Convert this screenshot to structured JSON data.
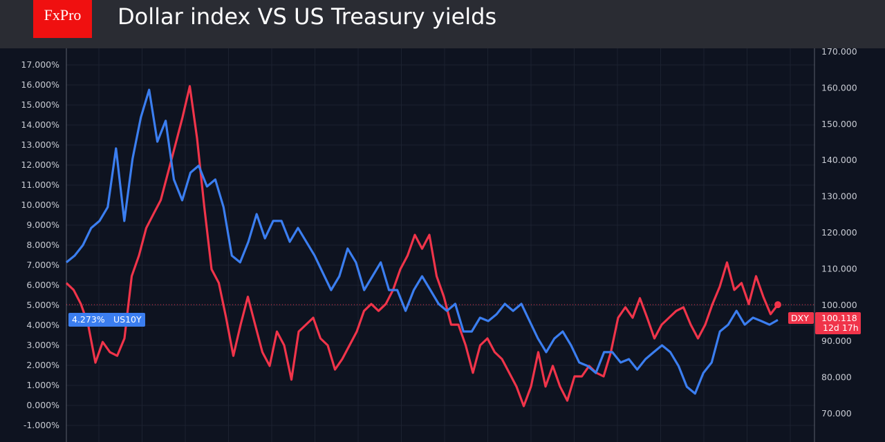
{
  "header": {
    "logo": "FxPro",
    "title": "Dollar index VS US Treasury yields"
  },
  "colors": {
    "us10y": "#3b7ef0",
    "dxy": "#f0344a",
    "background": "#0e1320",
    "header": "#2a2c33",
    "logo": "#f01010"
  },
  "chart_data": {
    "type": "line",
    "title": "Dollar index VS US Treasury yields",
    "grid": true,
    "y_left": {
      "ticks": [
        "17.000%",
        "16.000%",
        "15.000%",
        "14.000%",
        "13.000%",
        "12.000%",
        "11.000%",
        "10.000%",
        "9.000%",
        "8.000%",
        "7.000%",
        "6.000%",
        "5.000%",
        "4.000%",
        "3.000%",
        "2.000%",
        "1.000%",
        "0.000%",
        "-1.000%"
      ],
      "range": [
        -1.5,
        17.5
      ]
    },
    "y_right": {
      "ticks": [
        "170.000",
        "160.000",
        "150.000",
        "140.000",
        "130.000",
        "120.000",
        "110.000",
        "100.000",
        "90.000",
        "80.000",
        "70.000"
      ],
      "range": [
        69,
        171
      ]
    },
    "series": [
      {
        "name": "US10Y",
        "axis": "left",
        "last_label": "4.273%",
        "color": "#3b7ef0",
        "values": [
          7.14,
          7.48,
          8.0,
          8.86,
          9.21,
          9.9,
          12.83,
          9.21,
          12.31,
          14.38,
          15.76,
          13.17,
          14.21,
          11.28,
          10.24,
          11.62,
          11.97,
          10.93,
          11.28,
          9.9,
          7.48,
          7.14,
          8.17,
          9.55,
          8.34,
          9.21,
          9.21,
          8.17,
          8.86,
          8.17,
          7.48,
          6.62,
          5.76,
          6.45,
          7.83,
          7.14,
          5.76,
          6.45,
          7.14,
          5.76,
          5.76,
          4.72,
          5.76,
          6.45,
          5.76,
          5.07,
          4.72,
          5.07,
          3.69,
          3.69,
          4.38,
          4.21,
          4.55,
          5.07,
          4.72,
          5.07,
          4.21,
          3.34,
          2.66,
          3.34,
          3.69,
          3.0,
          2.14,
          1.97,
          1.62,
          2.66,
          2.66,
          2.14,
          2.31,
          1.79,
          2.31,
          2.66,
          3.0,
          2.66,
          1.97,
          0.93,
          0.59,
          1.62,
          2.14,
          3.69,
          4.03,
          4.72,
          4.03,
          4.38,
          4.21,
          4.03,
          4.27
        ]
      },
      {
        "name": "DXY",
        "axis": "right",
        "last_label": "100.118",
        "countdown": "12d 17h",
        "color": "#f0344a",
        "values": [
          106.1,
          104.2,
          100.3,
          94.6,
          84.1,
          89.8,
          87.0,
          86.0,
          90.8,
          108.0,
          113.7,
          121.3,
          125.2,
          129.0,
          136.6,
          144.2,
          151.9,
          160.5,
          146.1,
          127.1,
          109.9,
          106.1,
          96.5,
          86.0,
          94.6,
          102.3,
          94.6,
          87.0,
          83.2,
          92.7,
          88.9,
          79.4,
          92.7,
          94.6,
          96.5,
          90.8,
          88.9,
          82.2,
          85.1,
          88.9,
          92.7,
          98.4,
          100.3,
          98.4,
          100.3,
          104.2,
          109.9,
          113.7,
          119.4,
          115.6,
          119.4,
          108.0,
          102.3,
          94.6,
          94.6,
          88.9,
          81.3,
          88.9,
          90.8,
          87.0,
          85.1,
          81.3,
          77.5,
          72.1,
          77.5,
          87.0,
          77.5,
          83.2,
          77.5,
          73.6,
          80.3,
          80.3,
          83.2,
          81.3,
          80.3,
          87.0,
          96.5,
          99.4,
          96.5,
          101.9,
          96.5,
          90.8,
          94.6,
          96.5,
          98.4,
          99.4,
          94.6,
          90.8,
          94.6,
          100.3,
          105.1,
          111.8,
          104.2,
          106.1,
          100.3,
          108.0,
          102.3,
          97.5,
          100.118
        ]
      }
    ],
    "price_line": {
      "series": "DXY",
      "value": 100.118
    }
  }
}
